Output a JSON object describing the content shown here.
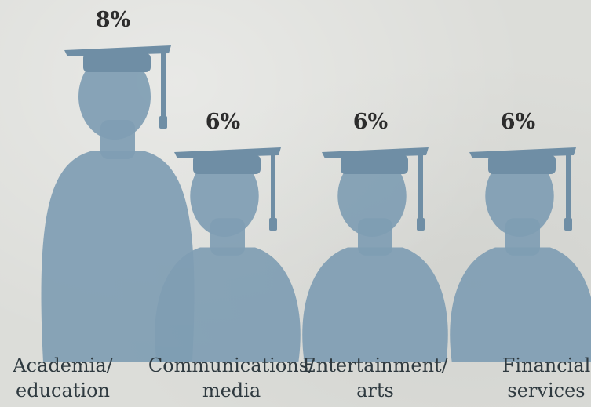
{
  "chart_data": {
    "type": "bar",
    "categories": [
      "Academia/ education",
      "Communications/ media",
      "Entertainment/ arts",
      "Financial services"
    ],
    "category_lines": [
      [
        "Academia/",
        "education"
      ],
      [
        "Communications/",
        "media"
      ],
      [
        "Entertainment/",
        "arts"
      ],
      [
        "Financial",
        "services"
      ]
    ],
    "values": [
      8,
      6,
      6,
      6
    ],
    "value_labels": [
      "8%",
      "6%",
      "6%",
      "6%"
    ],
    "unit": "%",
    "title": "",
    "xlabel": "",
    "ylabel": "",
    "grid": false,
    "mark_style": "graduate-silhouette",
    "colors": {
      "silhouette": "#7f9db3",
      "cap": "#6f8ea5",
      "label_text": "#2c2c2c",
      "category_text": "#2f3a40",
      "background": "#dcddd9"
    }
  }
}
